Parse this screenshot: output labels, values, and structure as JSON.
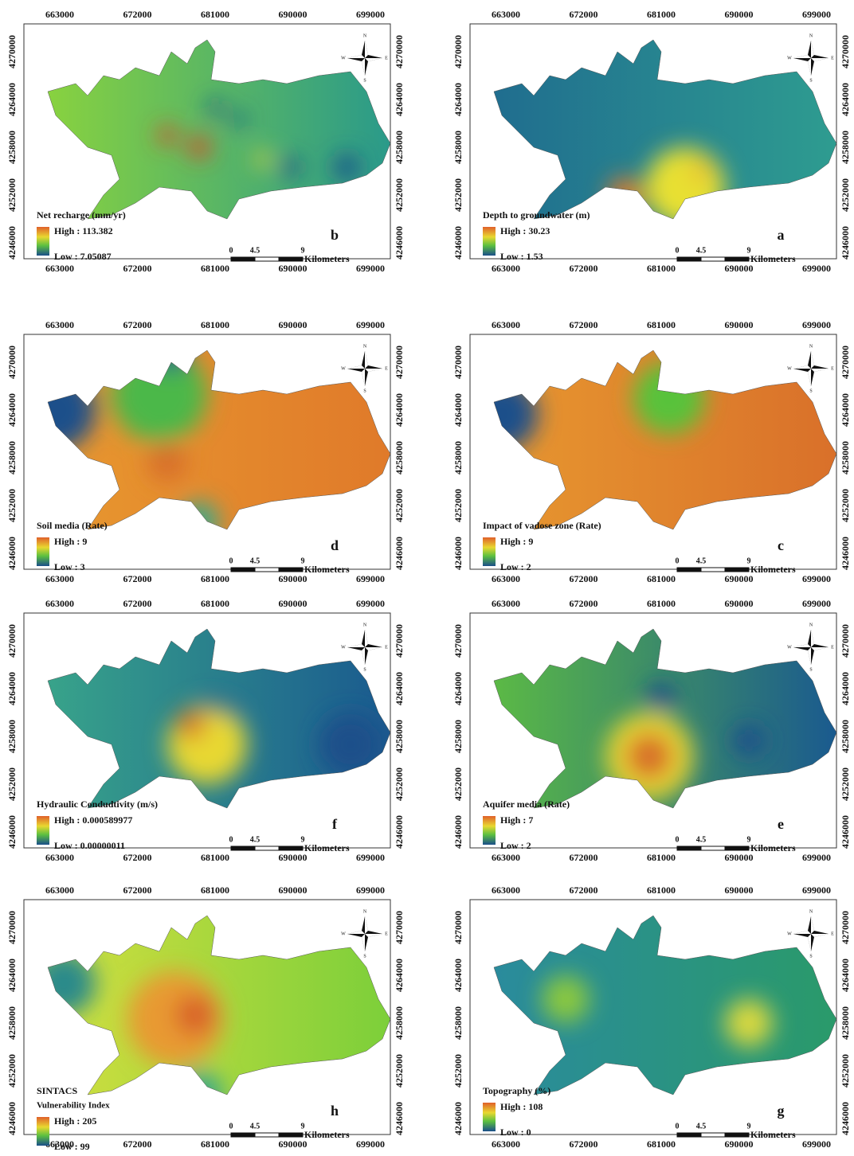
{
  "panels": [
    {
      "title": "Net recharge (mm/yr)",
      "high": "High : 113.382",
      "low": "Low : 7.05087",
      "letter": "b"
    },
    {
      "title": "Depth to groundwater (m)",
      "high": "High : 30.23",
      "low": "Low : 1.53",
      "letter": "a"
    },
    {
      "title": "Soil media (Rate)",
      "high": "High : 9",
      "low": "Low : 3",
      "letter": "d"
    },
    {
      "title": "Impact of vadose zone (Rate)",
      "high": "High : 9",
      "low": "Low : 2",
      "letter": "c"
    },
    {
      "title": "Hydraulic Condudtivity (m/s)",
      "high": "High : 0.000589977",
      "low": "Low : 0.00000011",
      "letter": "f"
    },
    {
      "title": "Aquifer media (Rate)",
      "high": "High : 7",
      "low": "Low : 2",
      "letter": "e"
    },
    {
      "title": "SINTACS",
      "subtitle": "Vulnerability Index",
      "high": "High : 205",
      "low": "Low : 99",
      "letter": "h"
    },
    {
      "title": "Topography (%)",
      "high": "High : 108",
      "low": "Low : 0",
      "letter": "g"
    }
  ],
  "x_ticks": [
    "663000",
    "672000",
    "681000",
    "690000",
    "699000"
  ],
  "y_ticks": [
    "4270000",
    "4264000",
    "4258000",
    "4252000",
    "4246000"
  ],
  "scale_bar": {
    "labels": [
      "0",
      "4.5",
      "9"
    ],
    "unit": "Kilometers"
  },
  "compass": {
    "n": "N",
    "s": "S",
    "e": "E",
    "w": "W"
  }
}
